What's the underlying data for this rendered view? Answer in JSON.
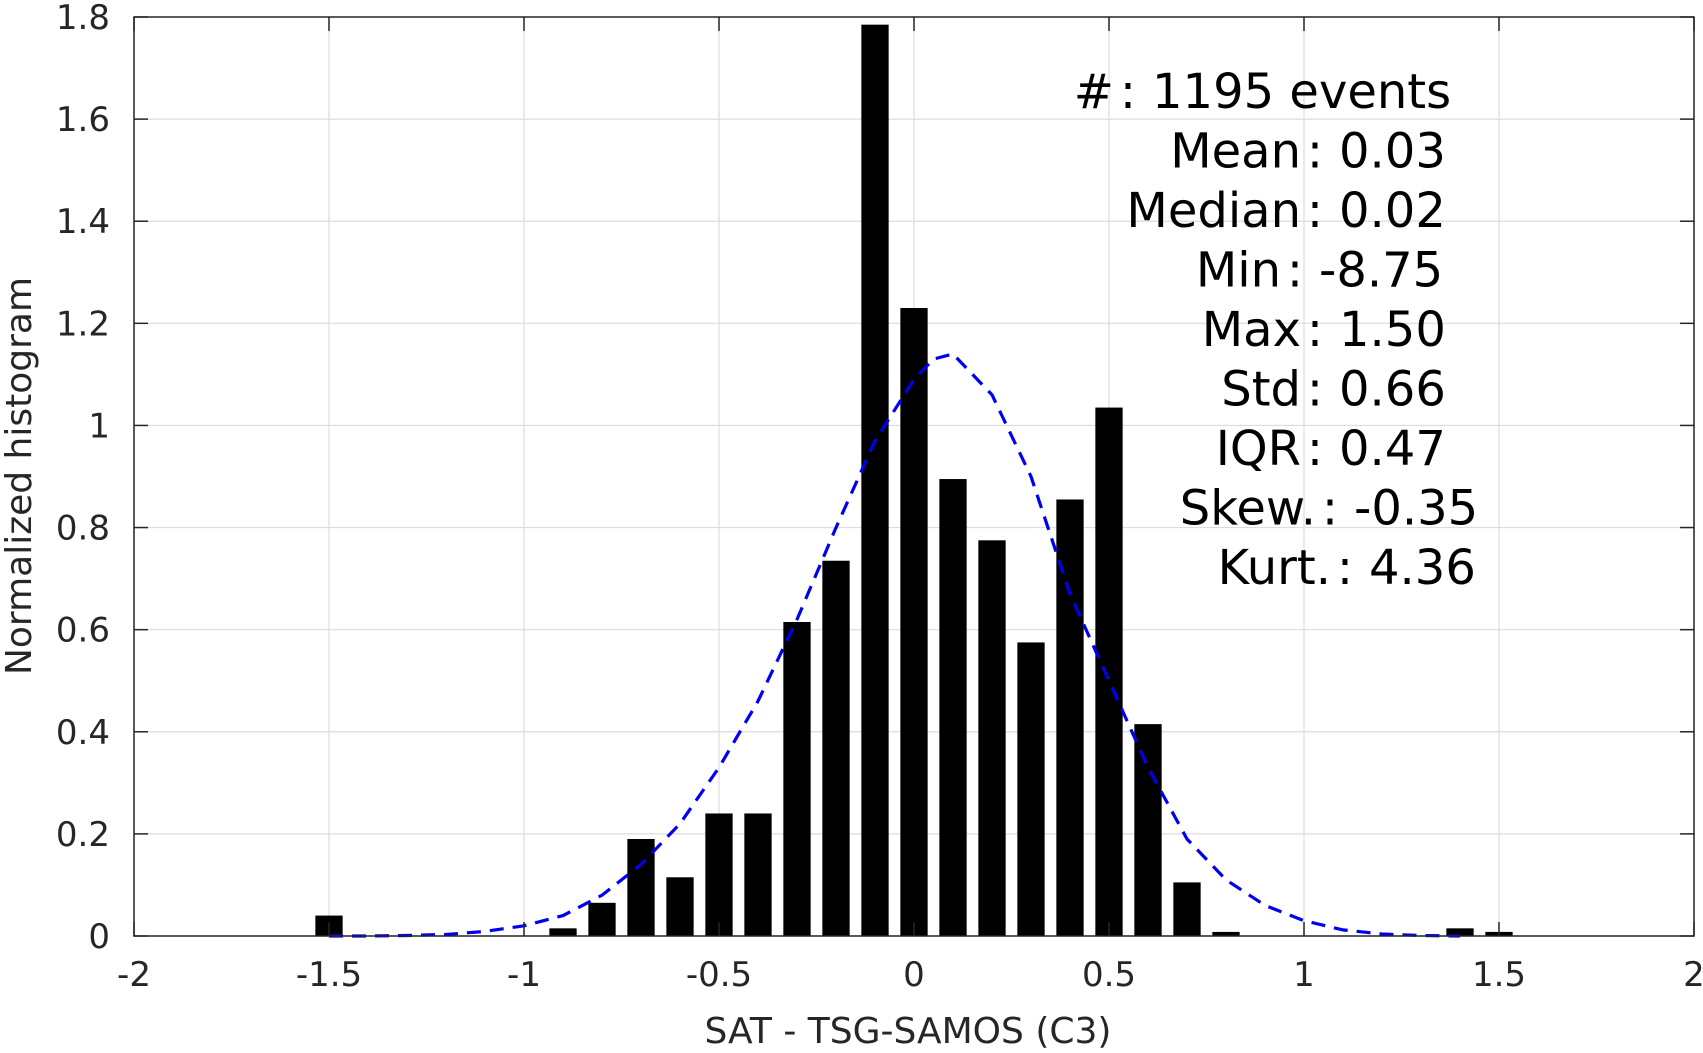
{
  "chart_data": {
    "type": "bar",
    "xlabel": "SAT - TSG-SAMOS (C3)",
    "ylabel": "Normalized histogram",
    "xlim": [
      -2,
      2
    ],
    "ylim": [
      0,
      1.8
    ],
    "xticks": [
      "-2",
      "-1.5",
      "-1",
      "-0.5",
      "0",
      "0.5",
      "1",
      "1.5",
      "2"
    ],
    "xtick_values": [
      -2,
      -1.5,
      -1,
      -0.5,
      0,
      0.5,
      1,
      1.5,
      2
    ],
    "yticks": [
      "0",
      "0.2",
      "0.4",
      "0.6",
      "0.8",
      "1",
      "1.2",
      "1.4",
      "1.6",
      "1.8"
    ],
    "ytick_values": [
      0,
      0.2,
      0.4,
      0.6,
      0.8,
      1,
      1.2,
      1.4,
      1.6,
      1.8
    ],
    "grid": true,
    "bar_color": "#000000",
    "bars": {
      "centers": [
        -1.5,
        -0.9,
        -0.8,
        -0.7,
        -0.6,
        -0.5,
        -0.4,
        -0.3,
        -0.2,
        -0.1,
        0.0,
        0.1,
        0.2,
        0.3,
        0.4,
        0.5,
        0.6,
        0.7,
        0.8,
        1.4,
        1.5
      ],
      "values": [
        0.04,
        0.015,
        0.065,
        0.19,
        0.115,
        0.24,
        0.24,
        0.615,
        0.735,
        1.785,
        1.23,
        0.895,
        0.775,
        0.575,
        0.855,
        1.035,
        0.415,
        0.105,
        0.008,
        0.015,
        0.008
      ],
      "width": 0.07
    },
    "fit_curve": {
      "type": "gaussian",
      "color": "#0000ee",
      "style": "dashed",
      "x": [
        -1.5,
        -1.4,
        -1.3,
        -1.2,
        -1.1,
        -1.0,
        -0.9,
        -0.8,
        -0.7,
        -0.6,
        -0.5,
        -0.4,
        -0.3,
        -0.2,
        -0.1,
        0.0,
        0.05,
        0.1,
        0.2,
        0.3,
        0.4,
        0.5,
        0.6,
        0.7,
        0.8,
        0.9,
        1.0,
        1.1,
        1.2,
        1.3,
        1.4
      ],
      "y": [
        0.0,
        0.0,
        0.001,
        0.003,
        0.009,
        0.02,
        0.04,
        0.08,
        0.14,
        0.22,
        0.33,
        0.46,
        0.62,
        0.8,
        0.97,
        1.09,
        1.13,
        1.14,
        1.06,
        0.9,
        0.67,
        0.5,
        0.33,
        0.19,
        0.11,
        0.06,
        0.03,
        0.012,
        0.004,
        0.001,
        0.0
      ]
    },
    "stats": {
      "lines": [
        {
          "label": "#  ",
          "value": "1195 events"
        },
        {
          "label": "Mean",
          "value": "0.03"
        },
        {
          "label": "Median",
          "value": "0.02"
        },
        {
          "label": "Min",
          "value": "-8.75"
        },
        {
          "label": "Max",
          "value": "1.50"
        },
        {
          "label": "Std",
          "value": "0.66"
        },
        {
          "label": "IQR",
          "value": "0.47"
        },
        {
          "label": "Skew.",
          "value": "-0.35"
        },
        {
          "label": "Kurt.",
          "value": "4.36"
        }
      ]
    }
  }
}
